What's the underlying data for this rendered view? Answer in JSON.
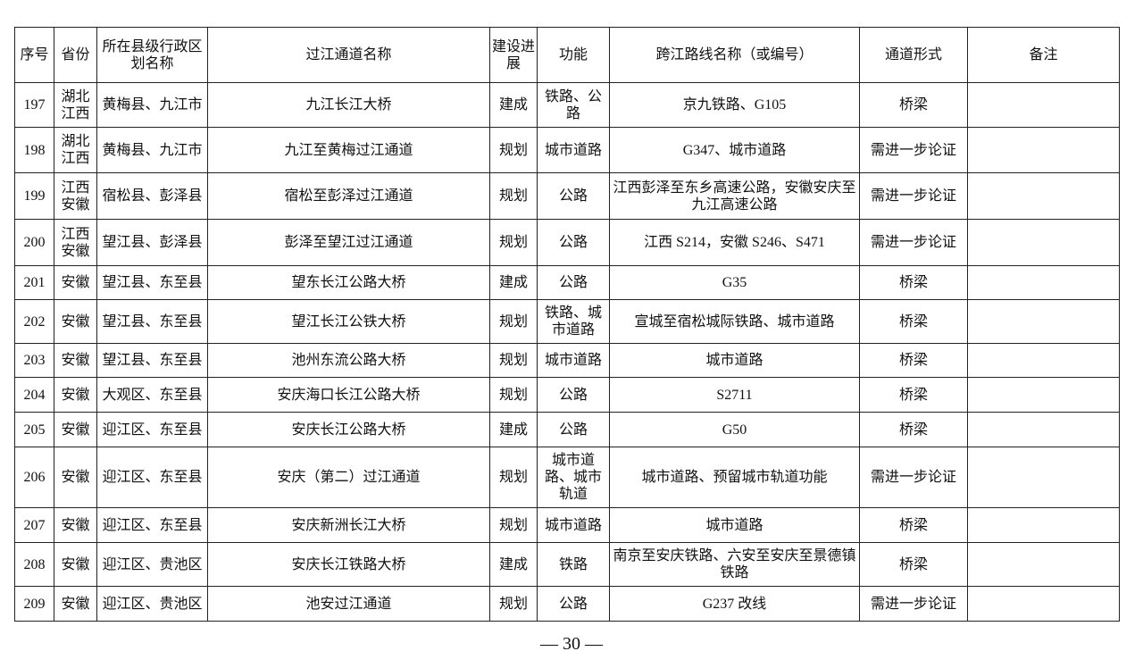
{
  "table": {
    "header": [
      "序号",
      "省份",
      "所在县级行政区划名称",
      "过江通道名称",
      "建设进展",
      "功能",
      "跨江路线名称（或编号）",
      "通道形式",
      "备注"
    ],
    "rows": [
      [
        "197",
        "湖北江西",
        "黄梅县、九江市",
        "九江长江大桥",
        "建成",
        "铁路、公路",
        "京九铁路、G105",
        "桥梁"
      ],
      [
        "198",
        "湖北江西",
        "黄梅县、九江市",
        "九江至黄梅过江通道",
        "规划",
        "城市道路",
        "G347、城市道路",
        "需进一步论证"
      ],
      [
        "199",
        "江西安徽",
        "宿松县、彭泽县",
        "宿松至彭泽过江通道",
        "规划",
        "公路",
        "江西彭泽至东乡高速公路，安徽安庆至九江高速公路",
        "需进一步论证"
      ],
      [
        "200",
        "江西安徽",
        "望江县、彭泽县",
        "彭泽至望江过江通道",
        "规划",
        "公路",
        "江西 S214，安徽 S246、S471",
        "需进一步论证"
      ],
      [
        "201",
        "安徽",
        "望江县、东至县",
        "望东长江公路大桥",
        "建成",
        "公路",
        "G35",
        "桥梁"
      ],
      [
        "202",
        "安徽",
        "望江县、东至县",
        "望江长江公铁大桥",
        "规划",
        "铁路、城市道路",
        "宣城至宿松城际铁路、城市道路",
        "桥梁"
      ],
      [
        "203",
        "安徽",
        "望江县、东至县",
        "池州东流公路大桥",
        "规划",
        "城市道路",
        "城市道路",
        "桥梁"
      ],
      [
        "204",
        "安徽",
        "大观区、东至县",
        "安庆海口长江公路大桥",
        "规划",
        "公路",
        "S2711",
        "桥梁"
      ],
      [
        "205",
        "安徽",
        "迎江区、东至县",
        "安庆长江公路大桥",
        "建成",
        "公路",
        "G50",
        "桥梁"
      ],
      [
        "206",
        "安徽",
        "迎江区、东至县",
        "安庆（第二）过江通道",
        "规划",
        "城市道路、城市轨道",
        "城市道路、预留城市轨道功能",
        "需进一步论证"
      ],
      [
        "207",
        "安徽",
        "迎江区、东至县",
        "安庆新洲长江大桥",
        "规划",
        "城市道路",
        "城市道路",
        "桥梁"
      ],
      [
        "208",
        "安徽",
        "迎江区、贵池区",
        "安庆长江铁路大桥",
        "建成",
        "铁路",
        "南京至安庆铁路、六安至安庆至景德镇铁路",
        "桥梁"
      ],
      [
        "209",
        "安徽",
        "迎江区、贵池区",
        "池安过江通道",
        "规划",
        "公路",
        "G237 改线",
        "需进一步论证"
      ]
    ]
  },
  "page_number": "— 30 —"
}
